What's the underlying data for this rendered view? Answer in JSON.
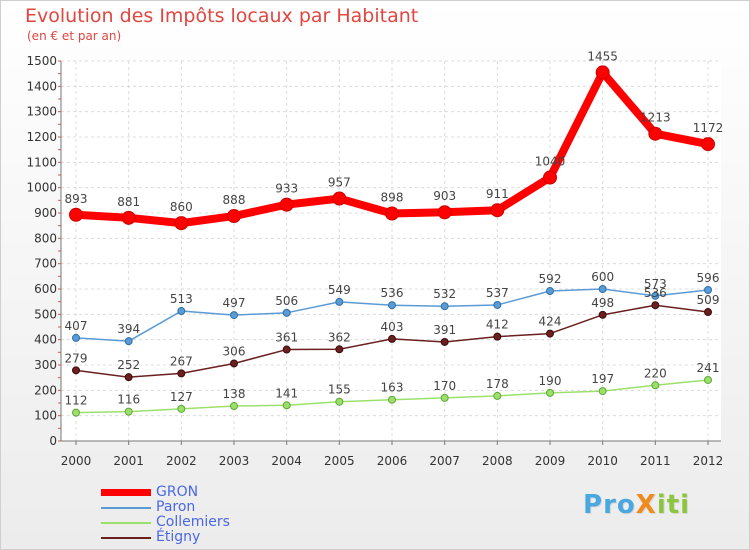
{
  "header": {
    "title": "Evolution des Impôts locaux par Habitant",
    "subtitle": "(en € et par an)"
  },
  "logo": {
    "text": "ProXiti",
    "letters": [
      {
        "ch": "P",
        "color": "#4aa8e0"
      },
      {
        "ch": "r",
        "color": "#4aa8e0"
      },
      {
        "ch": "o",
        "color": "#4aa8e0"
      },
      {
        "ch": "X",
        "color": "#f08a1c"
      },
      {
        "ch": "i",
        "color": "#8cc63f"
      },
      {
        "ch": "t",
        "color": "#8cc63f"
      },
      {
        "ch": "i",
        "color": "#8cc63f"
      }
    ]
  },
  "chart_data": {
    "type": "line",
    "title": "Evolution des Impôts locaux par Habitant",
    "subtitle": "(en € et par an)",
    "x": [
      "2000",
      "2001",
      "2002",
      "2003",
      "2004",
      "2005",
      "2006",
      "2007",
      "2008",
      "2009",
      "2010",
      "2011",
      "2012"
    ],
    "ylim": [
      0,
      1500
    ],
    "yticks": [
      0,
      100,
      200,
      300,
      400,
      500,
      600,
      700,
      800,
      900,
      1000,
      1100,
      1200,
      1300,
      1400,
      1500
    ],
    "grid": true,
    "legend_position": "bottom-left",
    "series": [
      {
        "name": "GRON",
        "color": "#ff0000",
        "values": [
          893,
          881,
          860,
          888,
          933,
          957,
          898,
          903,
          911,
          1040,
          1455,
          1213,
          1172
        ]
      },
      {
        "name": "Paron",
        "color": "#5b9bd5",
        "values": [
          407,
          394,
          513,
          497,
          506,
          549,
          536,
          532,
          537,
          592,
          600,
          573,
          596
        ]
      },
      {
        "name": "Collemiers",
        "color": "#9be06b",
        "values": [
          112,
          116,
          127,
          138,
          141,
          155,
          163,
          170,
          178,
          190,
          197,
          220,
          241
        ]
      },
      {
        "name": "Étigny",
        "color": "#6b1f1f",
        "values": [
          279,
          252,
          267,
          306,
          361,
          362,
          403,
          391,
          412,
          424,
          498,
          536,
          509
        ]
      }
    ]
  }
}
